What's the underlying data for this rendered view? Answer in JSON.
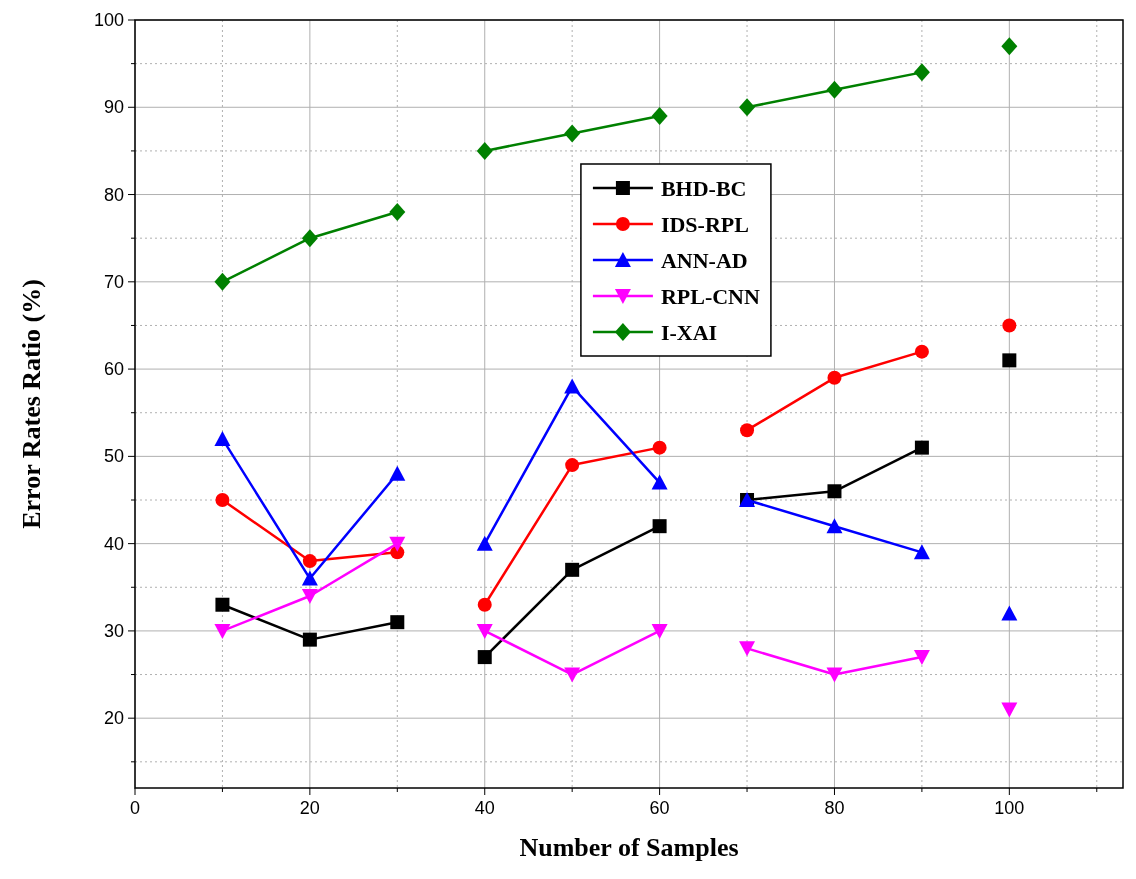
{
  "chart_data": {
    "type": "line",
    "xlabel": "Number of Samples",
    "ylabel": "Error Rates Ratio (%)",
    "series": [
      {
        "name": "BHD-BC",
        "color": "#000000",
        "marker": "square",
        "x": [
          10,
          20,
          30
        ],
        "values": [
          33,
          29,
          31
        ]
      },
      {
        "color": "#000000",
        "marker": "square",
        "x": [
          40,
          50,
          60
        ],
        "values": [
          27,
          37,
          42
        ]
      },
      {
        "color": "#000000",
        "marker": "square",
        "x": [
          70,
          80,
          90
        ],
        "values": [
          45,
          46,
          51
        ]
      },
      {
        "color": "#000000",
        "marker": "square",
        "x": [
          100
        ],
        "values": [
          61
        ]
      },
      {
        "name": "IDS-RPL",
        "color": "#ff0000",
        "marker": "circle",
        "x": [
          10,
          20,
          30
        ],
        "values": [
          45,
          38,
          39
        ]
      },
      {
        "color": "#ff0000",
        "marker": "circle",
        "x": [
          40,
          50,
          60
        ],
        "values": [
          33,
          49,
          51
        ]
      },
      {
        "color": "#ff0000",
        "marker": "circle",
        "x": [
          70,
          80,
          90
        ],
        "values": [
          53,
          59,
          62
        ]
      },
      {
        "color": "#ff0000",
        "marker": "circle",
        "x": [
          100
        ],
        "values": [
          65
        ]
      },
      {
        "name": "ANN-AD",
        "color": "#0000ff",
        "marker": "triangle",
        "x": [
          10,
          20,
          30
        ],
        "values": [
          52,
          36,
          48
        ]
      },
      {
        "color": "#0000ff",
        "marker": "triangle",
        "x": [
          40,
          50,
          60
        ],
        "values": [
          40,
          58,
          47
        ]
      },
      {
        "color": "#0000ff",
        "marker": "triangle",
        "x": [
          70,
          80,
          90
        ],
        "values": [
          45,
          42,
          39
        ]
      },
      {
        "color": "#0000ff",
        "marker": "triangle",
        "x": [
          100
        ],
        "values": [
          32
        ]
      },
      {
        "name": "RPL-CNN",
        "color": "#ff00ff",
        "marker": "triangle-down",
        "x": [
          10,
          20,
          30
        ],
        "values": [
          30,
          34,
          40
        ]
      },
      {
        "color": "#ff00ff",
        "marker": "triangle-down",
        "x": [
          40,
          50,
          60
        ],
        "values": [
          30,
          25,
          30
        ]
      },
      {
        "color": "#ff00ff",
        "marker": "triangle-down",
        "x": [
          70,
          80,
          90
        ],
        "values": [
          28,
          25,
          27
        ]
      },
      {
        "color": "#ff00ff",
        "marker": "triangle-down",
        "x": [
          100
        ],
        "values": [
          21
        ]
      },
      {
        "name": "I-XAI",
        "color": "#008000",
        "marker": "diamond",
        "x": [
          10,
          20,
          30
        ],
        "values": [
          70,
          75,
          78
        ]
      },
      {
        "color": "#008000",
        "marker": "diamond",
        "x": [
          40,
          50,
          60
        ],
        "values": [
          85,
          87,
          89
        ]
      },
      {
        "color": "#008000",
        "marker": "diamond",
        "x": [
          70,
          80,
          90
        ],
        "values": [
          90,
          92,
          94
        ]
      },
      {
        "color": "#008000",
        "marker": "diamond",
        "x": [
          100
        ],
        "values": [
          97
        ]
      }
    ],
    "xlim": [
      0,
      113
    ],
    "xticks": [
      0,
      {
        "value": 10,
        "label": null
      },
      20,
      {
        "value": 30,
        "label": null
      },
      40,
      {
        "value": 50,
        "label": null
      },
      60,
      {
        "value": 70,
        "label": null
      },
      80,
      {
        "value": 90,
        "label": null
      },
      100,
      {
        "value": 110,
        "label": null
      }
    ],
    "ylim": [
      12,
      100
    ],
    "yticks": [
      {
        "value": 15,
        "label": null
      },
      20,
      {
        "value": 25,
        "label": null
      },
      30,
      {
        "value": 35,
        "label": null
      },
      40,
      {
        "value": 45,
        "label": null
      },
      50,
      {
        "value": 55,
        "label": null
      },
      60,
      {
        "value": 65,
        "label": null
      },
      70,
      {
        "value": 75,
        "label": null
      },
      80,
      {
        "value": 85,
        "label": null
      },
      90,
      {
        "value": 95,
        "label": null
      },
      100
    ],
    "grid": true,
    "legend": "top",
    "line_style": "solid"
  }
}
